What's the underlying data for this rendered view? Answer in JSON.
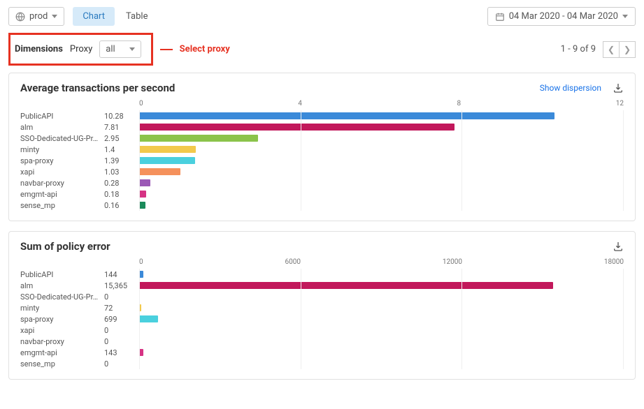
{
  "toolbar": {
    "environment": "prod",
    "tabs": {
      "chart": "Chart",
      "table": "Table",
      "active": "chart"
    },
    "date_range": "04 Mar 2020 - 04 Mar 2020"
  },
  "dimensions": {
    "label": "Dimensions",
    "proxy_label": "Proxy",
    "proxy_value": "all",
    "annotation": "Select proxy"
  },
  "pagination": {
    "text": "1 - 9 of 9"
  },
  "charts": [
    {
      "id": "avg_tps",
      "title": "Average transactions per second",
      "type": "horizontal_bar",
      "show_dispersion_link": "Show dispersion",
      "x_min": 0,
      "x_max": 12,
      "x_ticks": [
        "0",
        "4",
        "8",
        "12"
      ],
      "tick_fontsize": 10,
      "label_fontsize": 11,
      "grid_color": "#efefef",
      "rows": [
        {
          "label": "PublicAPI",
          "value": 10.28,
          "display": "10.28",
          "color": "#3b8ad9"
        },
        {
          "label": "alm",
          "value": 7.81,
          "display": "7.81",
          "color": "#c2185b"
        },
        {
          "label": "SSO-Dedicated-UG-Pr…",
          "value": 2.95,
          "display": "2.95",
          "color": "#8bc34a"
        },
        {
          "label": "minty",
          "value": 1.4,
          "display": "1.4",
          "color": "#f2c94c"
        },
        {
          "label": "spa-proxy",
          "value": 1.39,
          "display": "1.39",
          "color": "#4ad0de"
        },
        {
          "label": "xapi",
          "value": 1.03,
          "display": "1.03",
          "color": "#f5915c"
        },
        {
          "label": "navbar-proxy",
          "value": 0.28,
          "display": "0.28",
          "color": "#9b59b6"
        },
        {
          "label": "emgmt-api",
          "value": 0.18,
          "display": "0.18",
          "color": "#d63384"
        },
        {
          "label": "sense_mp",
          "value": 0.16,
          "display": "0.16",
          "color": "#1b8a5a"
        }
      ]
    },
    {
      "id": "policy_error",
      "title": "Sum of policy error",
      "type": "horizontal_bar",
      "x_min": 0,
      "x_max": 18000,
      "x_ticks": [
        "0",
        "6000",
        "12000",
        "18000"
      ],
      "tick_fontsize": 10,
      "label_fontsize": 11,
      "grid_color": "#efefef",
      "rows": [
        {
          "label": "PublicAPI",
          "value": 144,
          "display": "144",
          "color": "#3b8ad9"
        },
        {
          "label": "alm",
          "value": 15365,
          "display": "15,365",
          "color": "#c2185b"
        },
        {
          "label": "SSO-Dedicated-UG-Pr…",
          "value": 0,
          "display": "0",
          "color": "#8bc34a"
        },
        {
          "label": "minty",
          "value": 72,
          "display": "72",
          "color": "#f2c94c"
        },
        {
          "label": "spa-proxy",
          "value": 699,
          "display": "699",
          "color": "#4ad0de"
        },
        {
          "label": "xapi",
          "value": 0,
          "display": "0",
          "color": "#f5915c"
        },
        {
          "label": "navbar-proxy",
          "value": 0,
          "display": "0",
          "color": "#9b59b6"
        },
        {
          "label": "emgmt-api",
          "value": 143,
          "display": "143",
          "color": "#d63384"
        },
        {
          "label": "sense_mp",
          "value": 0,
          "display": "0",
          "color": "#1b8a5a"
        }
      ]
    }
  ]
}
